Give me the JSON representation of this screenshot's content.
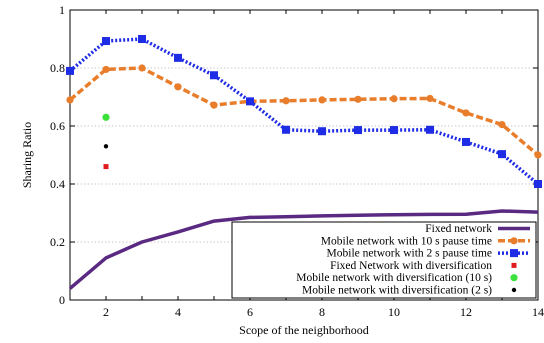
{
  "chart_data": {
    "type": "line",
    "xlabel": "Scope of the neighborhood",
    "ylabel": "Sharing Ratio",
    "xlim": [
      1,
      14
    ],
    "ylim": [
      0,
      1
    ],
    "x_ticks": [
      2,
      4,
      6,
      8,
      10,
      12,
      14
    ],
    "y_ticks": [
      0,
      0.2,
      0.4,
      0.6,
      0.8,
      1
    ],
    "x_tick_labels": [
      "2",
      "4",
      "6",
      "8",
      "10",
      "12",
      "14"
    ],
    "y_tick_labels": [
      "0",
      "0.2",
      "0.4",
      "0.6",
      "0.8",
      "1"
    ],
    "grid": true,
    "legend_position": "bottom-right",
    "series": [
      {
        "name": "Fixed network",
        "color": "#5a2a82",
        "style": "solid",
        "marker": "none",
        "x": [
          1,
          2,
          3,
          4,
          5,
          6,
          7,
          8,
          9,
          10,
          11,
          12,
          13,
          14
        ],
        "y": [
          0.04,
          0.145,
          0.2,
          0.235,
          0.272,
          0.285,
          0.287,
          0.29,
          0.292,
          0.294,
          0.295,
          0.296,
          0.307,
          0.303
        ]
      },
      {
        "name": "Mobile network with 10 s pause time",
        "color": "#e87d2c",
        "style": "dashed",
        "marker": "circle",
        "x": [
          1,
          2,
          3,
          4,
          5,
          6,
          7,
          8,
          9,
          10,
          11,
          12,
          13,
          14
        ],
        "y": [
          0.69,
          0.795,
          0.8,
          0.735,
          0.672,
          0.685,
          0.687,
          0.69,
          0.692,
          0.694,
          0.695,
          0.645,
          0.605,
          0.5
        ]
      },
      {
        "name": "Mobile network with 2 s pause time",
        "color": "#1f2ce6",
        "style": "dotted",
        "marker": "square",
        "x": [
          1,
          2,
          3,
          4,
          5,
          6,
          7,
          8,
          9,
          10,
          11,
          12,
          13,
          14
        ],
        "y": [
          0.79,
          0.893,
          0.9,
          0.835,
          0.775,
          0.685,
          0.587,
          0.582,
          0.586,
          0.586,
          0.587,
          0.545,
          0.503,
          0.4
        ]
      }
    ],
    "points": [
      {
        "name": "Fixed Network with diversification",
        "color": "#e31a1c",
        "marker": "small-square",
        "x": 2,
        "y": 0.46
      },
      {
        "name": "Mobile network with diversification (10 s)",
        "color": "#39e13a",
        "marker": "circle",
        "x": 2,
        "y": 0.63
      },
      {
        "name": "Mobile network with diversification (2 s)",
        "color": "#000000",
        "marker": "small-circle",
        "x": 2,
        "y": 0.53
      }
    ]
  }
}
